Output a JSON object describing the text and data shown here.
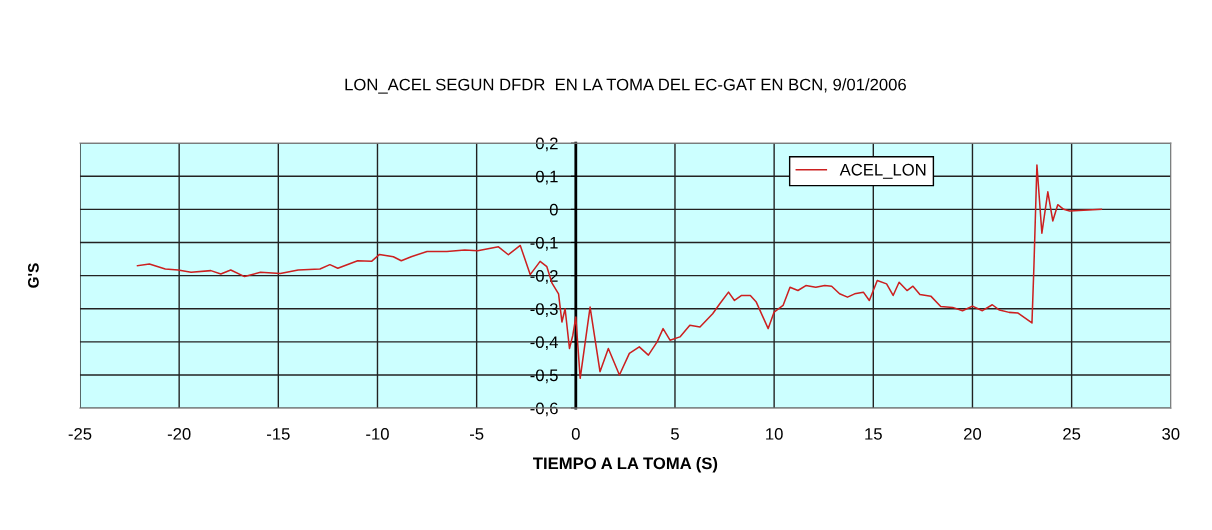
{
  "chart_data": {
    "type": "line",
    "title": "LON_ACEL SEGUN DFDR  EN LA TOMA DEL EC-GAT EN BCN, 9/01/2006",
    "xlabel": "TIEMPO A LA TOMA (S)",
    "ylabel": "G'S",
    "xlim": [
      -25,
      30
    ],
    "xticks": [
      -25,
      -20,
      -15,
      -10,
      -5,
      0,
      5,
      10,
      15,
      20,
      25,
      30
    ],
    "ylim": [
      -0.6,
      0.2
    ],
    "yticks": [
      {
        "value": -0.6,
        "label": "-0,6"
      },
      {
        "value": -0.5,
        "label": "-0,5"
      },
      {
        "value": -0.4,
        "label": "-0,4"
      },
      {
        "value": -0.3,
        "label": "-0,3"
      },
      {
        "value": -0.2,
        "label": "-0,2"
      },
      {
        "value": -0.1,
        "label": "-0,1"
      },
      {
        "value": 0,
        "label": "0"
      },
      {
        "value": 0.1,
        "label": "0,1"
      },
      {
        "value": 0.2,
        "label": "0,2"
      }
    ],
    "grid": true,
    "legend": "top right",
    "series": [
      {
        "name": "ACEL_LON",
        "color": "#cc2020",
        "x": [
          -22.1,
          -21.5,
          -20.7,
          -20.05,
          -19.4,
          -18.4,
          -17.9,
          -17.4,
          -16.7,
          -15.9,
          -14.9,
          -14.0,
          -12.9,
          -12.4,
          -12.0,
          -11.0,
          -10.3,
          -9.9,
          -9.2,
          -8.8,
          -8.3,
          -7.5,
          -6.5,
          -5.6,
          -4.95,
          -3.9,
          -3.4,
          -2.8,
          -2.3,
          -1.8,
          -1.46,
          -1.2,
          -0.87,
          -0.7,
          -0.54,
          -0.32,
          -0.15,
          0.0,
          0.22,
          0.72,
          1.22,
          1.64,
          2.2,
          2.7,
          3.2,
          3.66,
          4.1,
          4.4,
          4.75,
          5.25,
          5.75,
          6.26,
          6.9,
          7.26,
          7.7,
          8.0,
          8.36,
          8.8,
          9.1,
          9.7,
          10.0,
          10.45,
          10.8,
          11.2,
          11.6,
          12.1,
          12.55,
          12.9,
          13.3,
          13.7,
          14.06,
          14.5,
          14.8,
          15.2,
          15.67,
          16.0,
          16.3,
          16.7,
          17.0,
          17.35,
          17.9,
          18.4,
          19.0,
          19.5,
          20.0,
          20.5,
          21.0,
          21.36,
          21.85,
          22.3,
          23.0,
          23.1,
          23.25,
          23.5,
          23.8,
          24.05,
          24.3,
          24.6,
          24.9,
          26.5
        ],
        "values": [
          -0.17,
          -0.165,
          -0.18,
          -0.183,
          -0.19,
          -0.185,
          -0.195,
          -0.183,
          -0.203,
          -0.19,
          -0.194,
          -0.183,
          -0.18,
          -0.167,
          -0.178,
          -0.155,
          -0.157,
          -0.136,
          -0.143,
          -0.155,
          -0.143,
          -0.127,
          -0.127,
          -0.123,
          -0.125,
          -0.113,
          -0.137,
          -0.109,
          -0.197,
          -0.157,
          -0.173,
          -0.223,
          -0.255,
          -0.34,
          -0.3,
          -0.42,
          -0.38,
          -0.325,
          -0.51,
          -0.295,
          -0.49,
          -0.42,
          -0.5,
          -0.435,
          -0.415,
          -0.44,
          -0.4,
          -0.36,
          -0.395,
          -0.385,
          -0.35,
          -0.355,
          -0.315,
          -0.285,
          -0.25,
          -0.275,
          -0.26,
          -0.26,
          -0.28,
          -0.36,
          -0.31,
          -0.29,
          -0.235,
          -0.245,
          -0.23,
          -0.235,
          -0.23,
          -0.232,
          -0.255,
          -0.265,
          -0.255,
          -0.25,
          -0.275,
          -0.215,
          -0.225,
          -0.26,
          -0.22,
          -0.245,
          -0.232,
          -0.257,
          -0.262,
          -0.293,
          -0.296,
          -0.306,
          -0.292,
          -0.306,
          -0.288,
          -0.304,
          -0.311,
          -0.313,
          -0.343,
          -0.17,
          0.134,
          -0.072,
          0.053,
          -0.035,
          0.014,
          0.0,
          -0.005,
          0.0
        ]
      }
    ]
  }
}
